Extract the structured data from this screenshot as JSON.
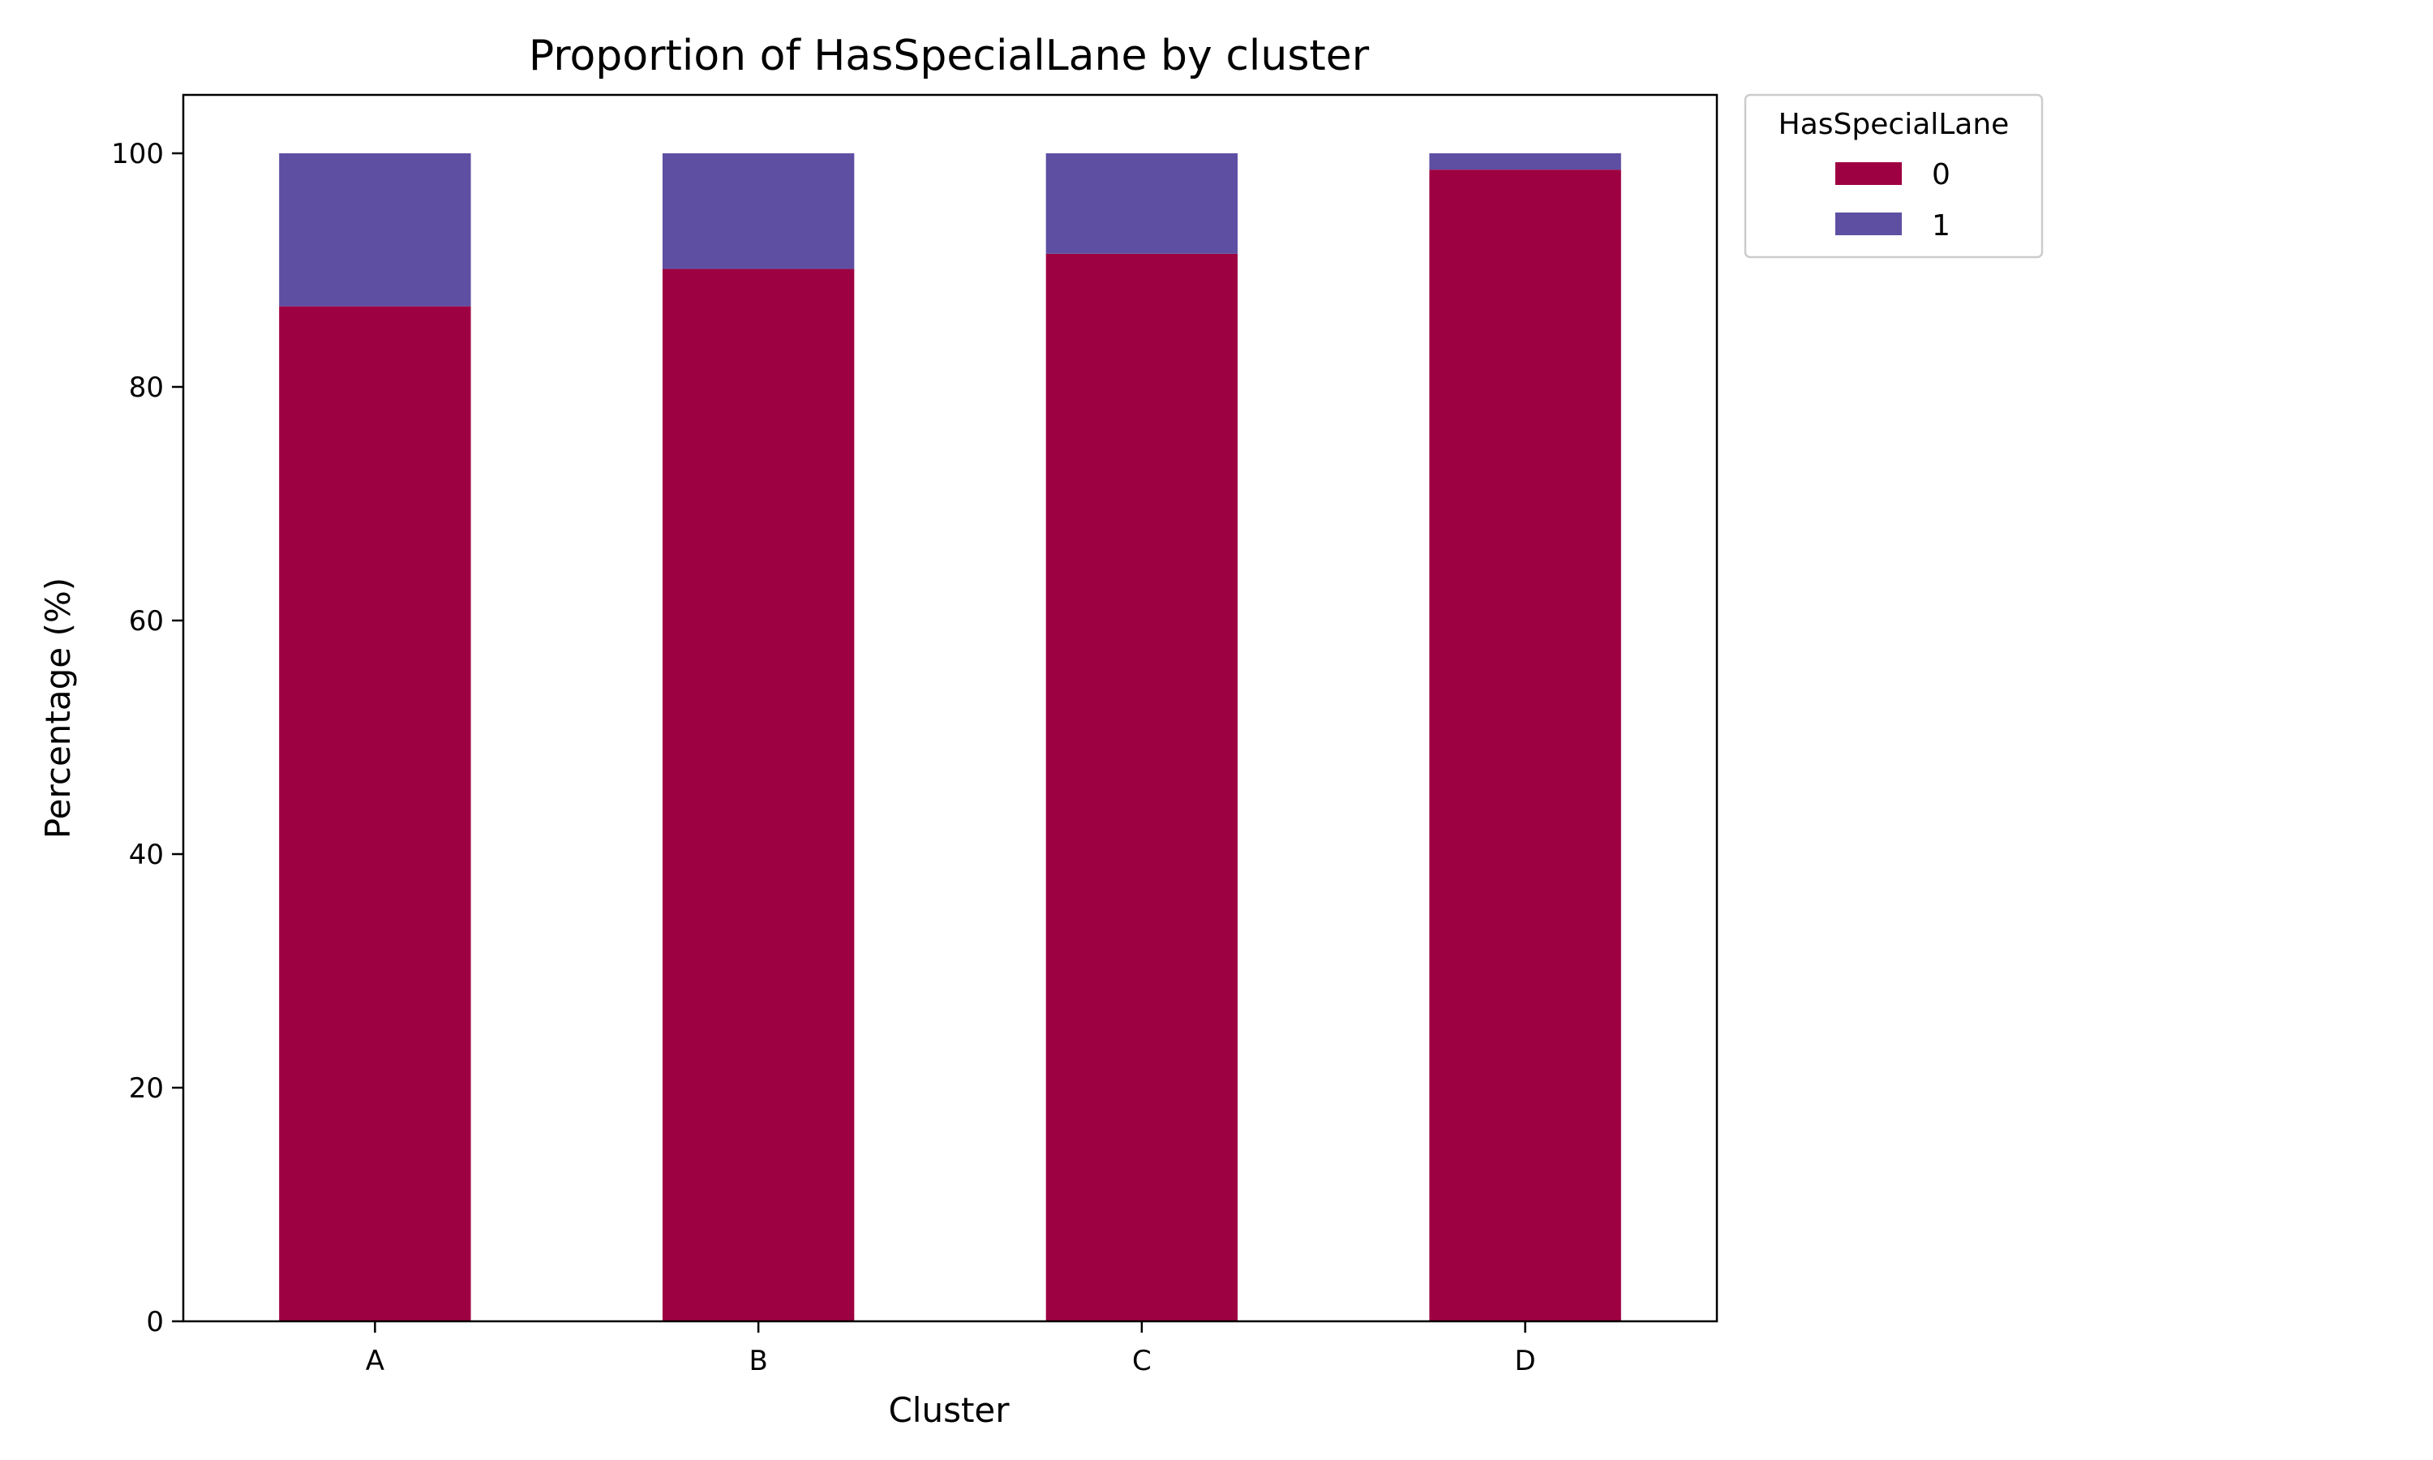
{
  "chart_data": {
    "type": "bar",
    "stacked": true,
    "title": "Proportion of HasSpecialLane by cluster",
    "xlabel": "Cluster",
    "ylabel": "Percentage (%)",
    "categories": [
      "A",
      "B",
      "C",
      "D"
    ],
    "series": [
      {
        "name": "0",
        "color": "#9e0142",
        "values": [
          86.9,
          90.1,
          91.4,
          98.6
        ]
      },
      {
        "name": "1",
        "color": "#5e4fa2",
        "values": [
          13.1,
          9.9,
          8.6,
          1.4
        ]
      }
    ],
    "ylim": [
      0,
      105
    ],
    "yticks": [
      0,
      20,
      40,
      60,
      80,
      100
    ],
    "grid": false,
    "legend": {
      "title": "HasSpecialLane",
      "placement": "outside upper right"
    }
  }
}
